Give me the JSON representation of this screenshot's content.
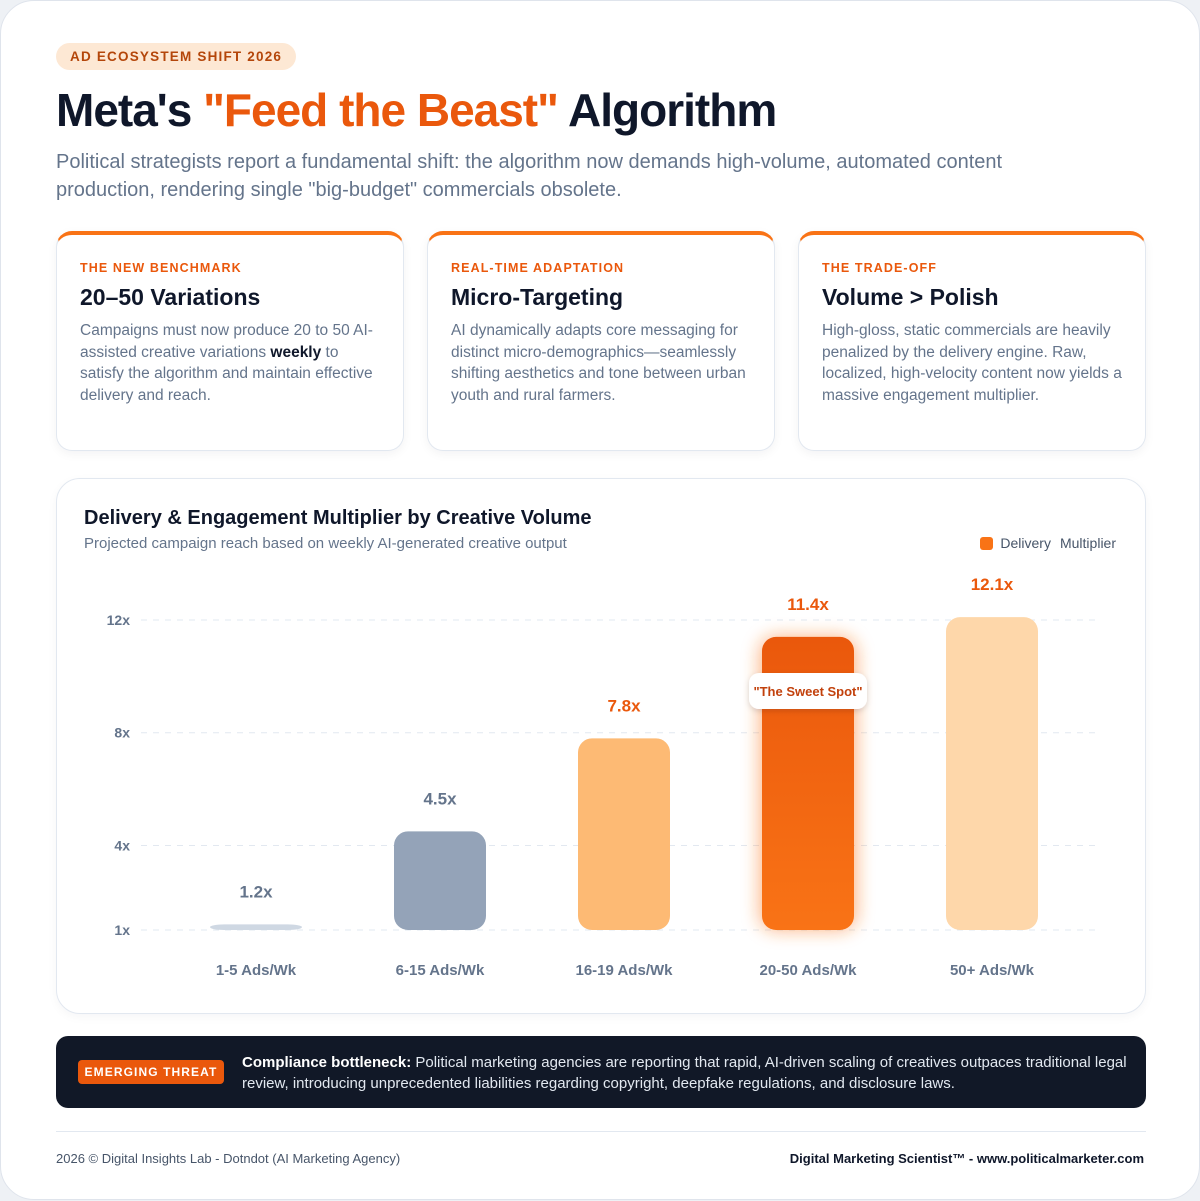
{
  "header": {
    "badge": "AD ECOSYSTEM SHIFT 2026",
    "title_prefix": "Meta's ",
    "title_accent": "\"Feed the Beast\"",
    "title_suffix": " Algorithm",
    "subtitle": "Political strategists report a fundamental shift: the algorithm now demands high-volume, automated content production, rendering single \"big-budget\" commercials obsolete."
  },
  "cards": [
    {
      "kicker": "THE NEW BENCHMARK",
      "heading": "20–50 Variations",
      "body_before": "Campaigns must now produce 20 to 50 AI-assisted creative variations ",
      "body_emphasis": "weekly",
      "body_after": " to satisfy the algorithm and maintain effective delivery and reach."
    },
    {
      "kicker": "REAL-TIME ADAPTATION",
      "heading": "Micro-Targeting",
      "body": "AI dynamically adapts core messaging for distinct micro-demographics—seamlessly shifting aesthetics and tone between urban youth and rural farmers."
    },
    {
      "kicker": "THE TRADE-OFF",
      "heading": "Volume > Polish",
      "body": "High-gloss, static commercials are heavily penalized by the delivery engine. Raw, localized, high-velocity content now yields a massive engagement multiplier."
    }
  ],
  "chart_data": {
    "type": "bar",
    "title": "Delivery & Engagement Multiplier by Creative Volume",
    "subtitle": "Projected campaign reach based on weekly AI-generated creative output",
    "legend": [
      "Delivery",
      "Multiplier"
    ],
    "legend_position": "top-right",
    "categories": [
      "1-5 Ads/Wk",
      "6-15 Ads/Wk",
      "16-19 Ads/Wk",
      "20-50 Ads/Wk",
      "50+ Ads/Wk"
    ],
    "values": [
      1.2,
      4.5,
      7.8,
      11.4,
      12.1
    ],
    "value_labels": [
      "1.2x",
      "4.5x",
      "7.8x",
      "11.4x",
      "12.1x"
    ],
    "y_ticks": [
      1,
      4,
      8,
      12
    ],
    "y_tick_labels": [
      "1x",
      "4x",
      "8x",
      "12x"
    ],
    "ylim": [
      1,
      13
    ],
    "grid": true,
    "bar_colors": [
      "#cfd8e3",
      "#94a3b8",
      "#fdba74",
      "#f97316",
      "#fed7aa"
    ],
    "label_colors": [
      "#64748b",
      "#64748b",
      "#ea580c",
      "#ea580c",
      "#ea580c"
    ],
    "highlight_index": 3,
    "annotation": "\"The Sweet Spot\""
  },
  "threat": {
    "badge": "EMERGING THREAT",
    "lead": "Compliance bottleneck:",
    "text": " Political marketing agencies are reporting that rapid, AI-driven scaling of creatives outpaces traditional legal review, introducing unprecedented liabilities regarding copyright, deepfake regulations, and disclosure laws."
  },
  "footer": {
    "left": "2026 © Digital Insights Lab - Dotndot (AI Marketing Agency)",
    "right": "Digital Marketing Scientist™ - www.politicalmarketer.com"
  },
  "colors": {
    "accent": "#ea580c",
    "dark": "#0f172a",
    "muted": "#64748b"
  }
}
